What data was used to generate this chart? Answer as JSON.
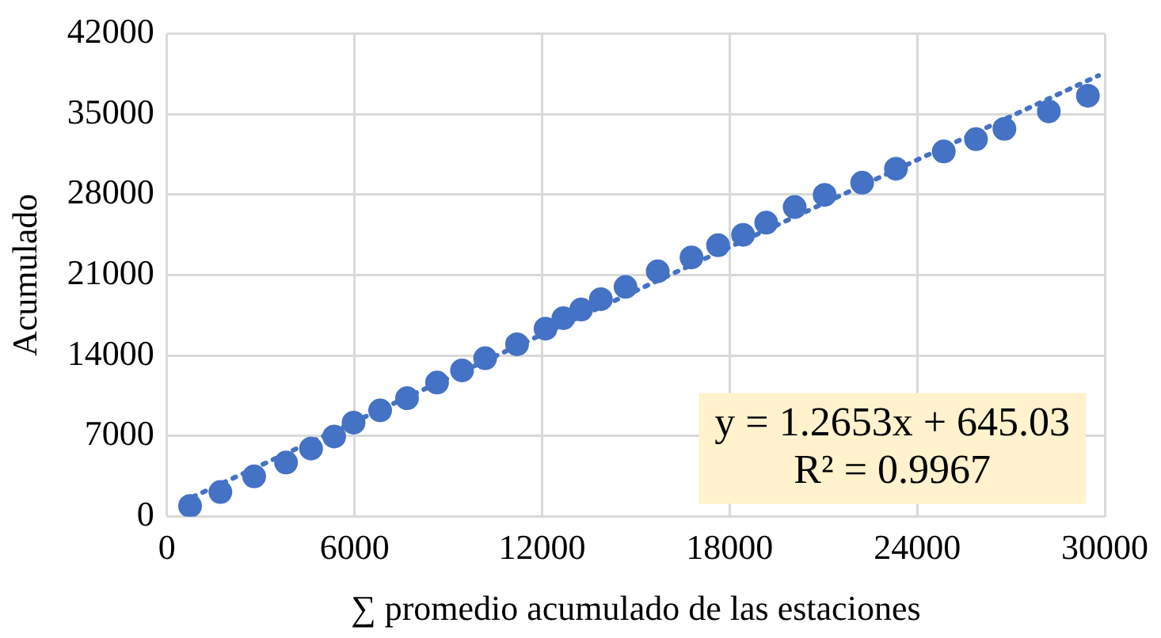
{
  "chart_data": {
    "type": "scatter",
    "xlabel": "∑ promedio acumulado de las estaciones",
    "ylabel": "Acumulado",
    "xlim": [
      0,
      30000
    ],
    "xticks": [
      0,
      6000,
      12000,
      18000,
      24000,
      30000
    ],
    "ylim": [
      0,
      42000
    ],
    "yticks": [
      0,
      7000,
      14000,
      21000,
      28000,
      35000,
      42000
    ],
    "grid": true,
    "marker": "circle",
    "series": [
      {
        "color": "#4472c4",
        "x": [
          740,
          1710,
          2790,
          3810,
          4610,
          5350,
          5970,
          6820,
          7680,
          8640,
          9440,
          10180,
          11200,
          12110,
          12680,
          13250,
          13880,
          14670,
          15700,
          16780,
          17630,
          18430,
          19170,
          20080,
          21040,
          22240,
          23320,
          24850,
          25880,
          26790,
          28210,
          29460
        ],
        "values": [
          910,
          2120,
          3480,
          4690,
          5900,
          6950,
          8160,
          9220,
          10280,
          11640,
          12700,
          13760,
          14970,
          16330,
          17240,
          17990,
          18900,
          19960,
          21320,
          22530,
          23590,
          24490,
          25550,
          26910,
          27970,
          29030,
          30240,
          31750,
          32810,
          33710,
          35230,
          36590
        ]
      },
      {
        "type": "line",
        "color": "#4472c4",
        "line_style": "dotted",
        "marker": "none",
        "x": [
          500,
          29800
        ],
        "values": [
          1280,
          38350
        ]
      }
    ],
    "annotations": [
      "y = 1.2653x + 645.03",
      "R² = 0.9967"
    ]
  }
}
